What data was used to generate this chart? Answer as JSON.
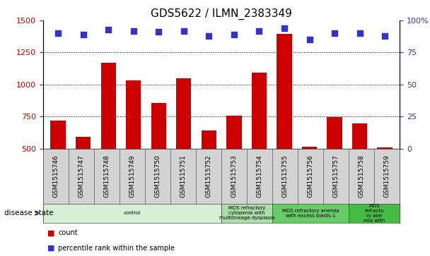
{
  "title": "GDS5622 / ILMN_2383349",
  "samples": [
    "GSM1515746",
    "GSM1515747",
    "GSM1515748",
    "GSM1515749",
    "GSM1515750",
    "GSM1515751",
    "GSM1515752",
    "GSM1515753",
    "GSM1515754",
    "GSM1515755",
    "GSM1515756",
    "GSM1515757",
    "GSM1515758",
    "GSM1515759"
  ],
  "counts": [
    720,
    590,
    1170,
    1030,
    855,
    1050,
    640,
    755,
    1095,
    1395,
    515,
    745,
    695,
    510
  ],
  "percentile_ranks": [
    90,
    89,
    93,
    92,
    91,
    92,
    88,
    89,
    92,
    94,
    85,
    90,
    90,
    88
  ],
  "bar_color": "#cc0000",
  "dot_color": "#3333cc",
  "ylim_left": [
    500,
    1500
  ],
  "ylim_right": [
    0,
    100
  ],
  "yticks_left": [
    500,
    750,
    1000,
    1250,
    1500
  ],
  "yticks_right": [
    0,
    25,
    50,
    75,
    100
  ],
  "grid_values": [
    750,
    1000,
    1250
  ],
  "disease_groups": [
    {
      "label": "control",
      "start": 0,
      "end": 7,
      "color": "#d5f0d5"
    },
    {
      "label": "MDS refractory\ncytopenia with\nmultilineage dysplasia",
      "start": 7,
      "end": 9,
      "color": "#aaddaa"
    },
    {
      "label": "MDS refractory anemia\nwith excess blasts-1",
      "start": 9,
      "end": 12,
      "color": "#66cc66"
    },
    {
      "label": "MDS\nrefracto\nry ane\nmia with",
      "start": 12,
      "end": 14,
      "color": "#44bb44"
    }
  ],
  "disease_state_label": "disease state",
  "bg_color": "#ffffff"
}
